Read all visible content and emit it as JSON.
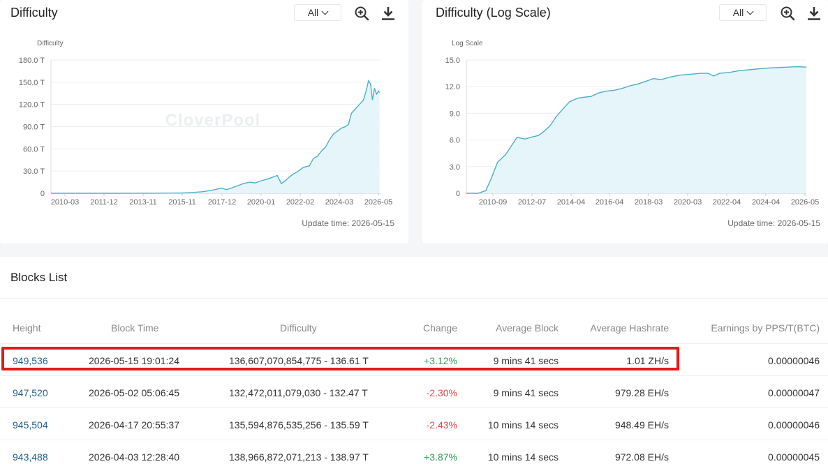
{
  "charts": [
    {
      "title": "Difficulty",
      "range_label": "All",
      "watermark": "CloverPool",
      "update_text": "Update time: 2026-05-15",
      "chart_data": {
        "type": "area",
        "ylabel": "Difficulty",
        "yticks": [
          "0",
          "30.0 T",
          "60.0 T",
          "90.0 T",
          "120.0 T",
          "150.0 T",
          "180.0 T"
        ],
        "ylim": [
          0,
          180
        ],
        "xticks": [
          "2010-03",
          "2011-12",
          "2013-11",
          "2015-11",
          "2017-12",
          "2020-01",
          "2022-02",
          "2024-03",
          "2026-05"
        ],
        "xlim": [
          2010.0,
          2026.45
        ],
        "x": [
          2010.0,
          2013.0,
          2015.0,
          2016.5,
          2017.0,
          2017.5,
          2017.9,
          2018.2,
          2018.5,
          2018.75,
          2018.9,
          2019.0,
          2019.3,
          2019.6,
          2019.9,
          2020.2,
          2020.5,
          2020.8,
          2021.0,
          2021.3,
          2021.5,
          2021.7,
          2021.9,
          2022.1,
          2022.3,
          2022.6,
          2022.9,
          2023.1,
          2023.3,
          2023.5,
          2023.7,
          2023.9,
          2024.1,
          2024.3,
          2024.5,
          2024.7,
          2024.85,
          2025.0,
          2025.2,
          2025.4,
          2025.6,
          2025.75,
          2025.85,
          2025.95,
          2026.05,
          2026.15,
          2026.25,
          2026.35,
          2026.4
        ],
        "values": [
          0,
          0,
          0.1,
          0.3,
          1,
          2,
          3.5,
          5,
          7,
          5,
          6,
          7,
          10,
          13,
          15,
          14,
          17,
          19,
          21,
          24,
          13,
          17,
          22,
          26,
          29,
          35,
          37,
          47,
          50,
          57,
          62,
          72,
          80,
          84,
          88,
          90,
          93,
          108,
          114,
          120,
          126,
          140,
          152,
          148,
          126,
          142,
          134,
          138,
          136
        ],
        "color": "#4aaecd"
      }
    },
    {
      "title": "Difficulty (Log Scale)",
      "range_label": "All",
      "watermark": "CloverPool",
      "update_text": "Update time: 2026-05-15",
      "chart_data": {
        "type": "area",
        "ylabel": "Log Scale",
        "yticks": [
          "0",
          "3.0",
          "6.0",
          "9.0",
          "12.0",
          "15.0"
        ],
        "ylim": [
          0,
          15
        ],
        "xticks": [
          "2010-09",
          "2012-07",
          "2014-04",
          "2016-04",
          "2018-03",
          "2020-03",
          "2022-04",
          "2024-04",
          "2026-05"
        ],
        "xlim": [
          2009.0,
          2026.45
        ],
        "x": [
          2009.0,
          2009.6,
          2010.0,
          2010.3,
          2010.6,
          2011.0,
          2011.3,
          2011.6,
          2012.0,
          2012.3,
          2012.7,
          2013.0,
          2013.3,
          2013.6,
          2014.0,
          2014.3,
          2014.7,
          2015.0,
          2015.4,
          2015.8,
          2016.2,
          2016.6,
          2017.0,
          2017.4,
          2017.8,
          2018.2,
          2018.6,
          2019.0,
          2019.5,
          2020.0,
          2020.5,
          2021.0,
          2021.4,
          2021.7,
          2022.0,
          2022.5,
          2023.0,
          2023.5,
          2024.0,
          2024.5,
          2025.0,
          2025.5,
          2026.0,
          2026.45
        ],
        "values": [
          0,
          0,
          0.3,
          1.8,
          3.5,
          4.3,
          5.3,
          6.3,
          6.1,
          6.3,
          6.5,
          7.0,
          7.6,
          8.6,
          9.6,
          10.3,
          10.7,
          10.8,
          10.9,
          11.3,
          11.5,
          11.6,
          11.8,
          12.1,
          12.3,
          12.6,
          12.9,
          12.8,
          13.1,
          13.3,
          13.4,
          13.5,
          13.5,
          13.2,
          13.5,
          13.6,
          13.8,
          13.9,
          14.0,
          14.1,
          14.15,
          14.2,
          14.25,
          14.2
        ],
        "color": "#4aaecd"
      }
    }
  ],
  "blocks": {
    "title": "Blocks List",
    "columns": [
      "Height",
      "Block Time",
      "Difficulty",
      "Change",
      "Average Block",
      "Average Hashrate",
      "Earnings by PPS/T(BTC)"
    ],
    "rows": [
      {
        "height": "949,536",
        "time": "2026-05-15 19:01:24",
        "difficulty": "136,607,070,854,775 - 136.61 T",
        "change": "+3.12%",
        "avg_block": "9 mins 41 secs",
        "hashrate": "1.01 ZH/s",
        "earnings": "0.00000046"
      },
      {
        "height": "947,520",
        "time": "2026-05-02 05:06:45",
        "difficulty": "132,472,011,079,030 - 132.47 T",
        "change": "-2.30%",
        "avg_block": "9 mins 41 secs",
        "hashrate": "979.28 EH/s",
        "earnings": "0.00000047"
      },
      {
        "height": "945,504",
        "time": "2026-04-17 20:55:37",
        "difficulty": "135,594,876,535,256 - 135.59 T",
        "change": "-2.43%",
        "avg_block": "10 mins 14 secs",
        "hashrate": "948.49 EH/s",
        "earnings": "0.00000046"
      },
      {
        "height": "943,488",
        "time": "2026-04-03 12:28:40",
        "difficulty": "138,966,872,071,213 - 138.97 T",
        "change": "+3.87%",
        "avg_block": "10 mins 14 secs",
        "hashrate": "972.08 EH/s",
        "earnings": "0.00000045"
      }
    ],
    "highlight_color": "#e01b1b",
    "link_color": "#1e5f8c",
    "positive_color": "#2e9e58",
    "negative_color": "#d84a4a"
  }
}
